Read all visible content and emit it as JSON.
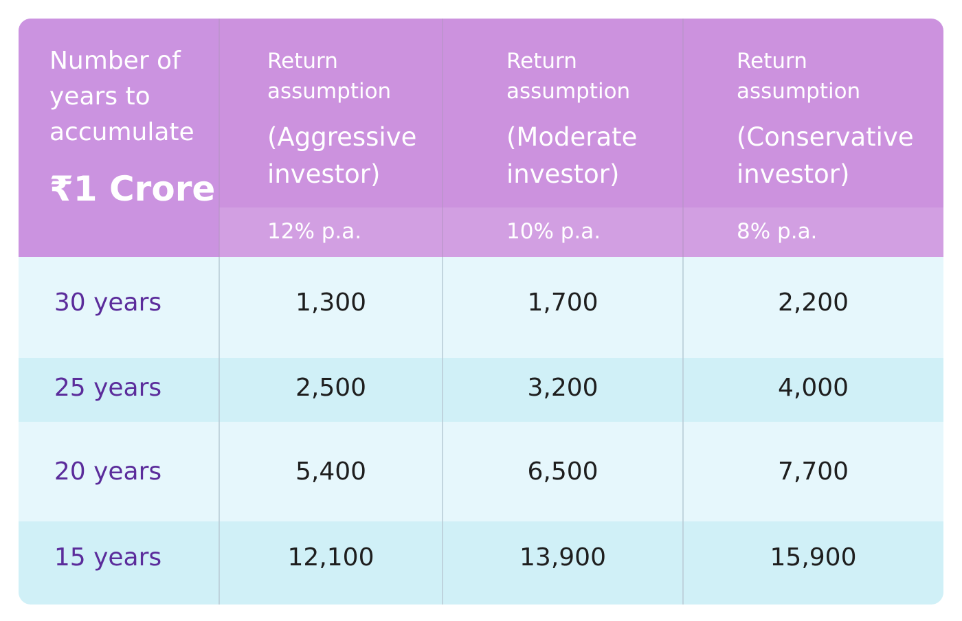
{
  "header": {
    "first_col_line1": "Number of",
    "first_col_line2": "years to",
    "first_col_line3": "accumulate",
    "first_col_amount": "₹1 Crore",
    "columns": [
      {
        "return_line1": "Return",
        "return_line2": "assumption",
        "investor_line1": "(Aggressive",
        "investor_line2": "investor)",
        "rate": "12% p.a."
      },
      {
        "return_line1": "Return",
        "return_line2": "assumption",
        "investor_line1": "(Moderate",
        "investor_line2": "investor)",
        "rate": "10% p.a."
      },
      {
        "return_line1": "Return",
        "return_line2": "assumption",
        "investor_line1": "(Conservative",
        "investor_line2": "investor)",
        "rate": "8% p.a."
      }
    ]
  },
  "rows": [
    {
      "label": "30 years",
      "values": [
        "1,300",
        "1,700",
        "2,200"
      ]
    },
    {
      "label": "25 years",
      "values": [
        "2,500",
        "3,200",
        "4,000"
      ]
    },
    {
      "label": "20 years",
      "values": [
        "5,400",
        "6,500",
        "7,700"
      ]
    },
    {
      "label": "15 years",
      "values": [
        "12,100",
        "13,900",
        "15,900"
      ]
    }
  ],
  "colors": {
    "header_bg": "#cc92de",
    "rate_band_bg": "#d29fe2",
    "row_light": "#e6f7fc",
    "row_dark": "#d0f0f7",
    "label_color": "#5b2c9b",
    "value_color": "#1e1e1e"
  }
}
